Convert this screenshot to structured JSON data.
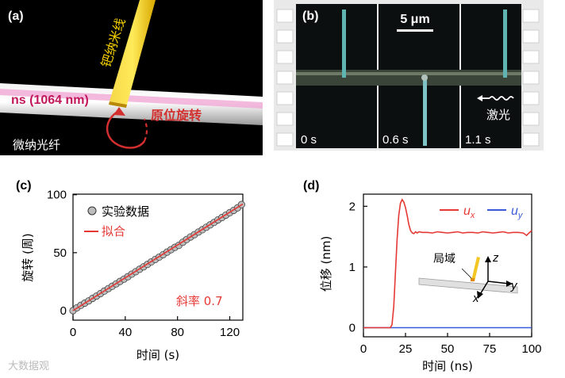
{
  "panel_a": {
    "label": "(a)",
    "wire_label": "钯纳米线",
    "fiber_label": "微纳光纤",
    "light_label": "ns (1064 nm)",
    "rotation_label": "原位旋转"
  },
  "panel_b": {
    "label": "(b)",
    "scale_bar": "5 μm",
    "frames": [
      {
        "time": "0 s"
      },
      {
        "time": "0.6 s"
      },
      {
        "time": "1.1 s"
      }
    ],
    "laser_label": "激光"
  },
  "chart_data": [
    {
      "panel": "(c)",
      "type": "scatter",
      "xlabel": "时间 (s)",
      "ylabel": "旋转 (周)",
      "xlim": [
        0,
        130
      ],
      "ylim": [
        0,
        100
      ],
      "xticks": [
        "0",
        "40",
        "80",
        "120"
      ],
      "yticks": [
        "0",
        "50",
        "100"
      ],
      "legend": [
        "实验数据",
        "拟合"
      ],
      "annotation": "斜率 0.7",
      "series": [
        {
          "name": "实验数据",
          "x": [
            0,
            3,
            6,
            9,
            12,
            15,
            18,
            21,
            24,
            27,
            30,
            33,
            36,
            39,
            42,
            45,
            48,
            51,
            54,
            57,
            60,
            63,
            66,
            69,
            72,
            75,
            78,
            81,
            84,
            87,
            90,
            93,
            96,
            99,
            102,
            105,
            108,
            111,
            114,
            117,
            120,
            123,
            126,
            129
          ],
          "values": [
            0,
            2.5,
            4.6,
            6.5,
            8.4,
            10.6,
            12.6,
            14.7,
            16.9,
            19.0,
            21.0,
            23.1,
            25.2,
            27.2,
            29.3,
            31.5,
            33.6,
            35.7,
            37.8,
            39.9,
            42.1,
            44.2,
            46.2,
            48.3,
            50.5,
            52.6,
            54.6,
            56.3,
            59.0,
            61.4,
            63.6,
            65.6,
            67.8,
            69.8,
            71.9,
            74.0,
            76.1,
            78.3,
            80.3,
            82.4,
            84.5,
            86.5,
            88.7,
            91.5
          ]
        },
        {
          "name": "拟合",
          "x": [
            0,
            130
          ],
          "values": [
            0,
            92
          ]
        }
      ]
    },
    {
      "panel": "(d)",
      "type": "line",
      "xlabel": "时间 (ns)",
      "ylabel": "位移 (nm)",
      "xlim": [
        0,
        100
      ],
      "ylim": [
        -0.15,
        2.2
      ],
      "xticks": [
        "0",
        "25",
        "50",
        "75",
        "100"
      ],
      "yticks": [
        "0",
        "1",
        "2"
      ],
      "inset_label": "局域",
      "series": [
        {
          "name": "u",
          "sub": "x",
          "color": "#e53935",
          "x": [
            0,
            16,
            17,
            18,
            19,
            20,
            21,
            22,
            23,
            24,
            25,
            26,
            27,
            28,
            29,
            30,
            31,
            32,
            33,
            35,
            38,
            41,
            44,
            47,
            50,
            53,
            56,
            59,
            62,
            65,
            68,
            71,
            74,
            77,
            80,
            83,
            86,
            89,
            92,
            95,
            97,
            98,
            100
          ],
          "values": [
            0,
            0,
            0.05,
            0.35,
            0.9,
            1.45,
            1.85,
            2.05,
            2.11,
            2.07,
            1.98,
            1.85,
            1.7,
            1.6,
            1.56,
            1.55,
            1.58,
            1.56,
            1.58,
            1.57,
            1.57,
            1.56,
            1.58,
            1.57,
            1.56,
            1.57,
            1.58,
            1.56,
            1.57,
            1.57,
            1.56,
            1.58,
            1.57,
            1.56,
            1.57,
            1.58,
            1.56,
            1.57,
            1.57,
            1.56,
            1.52,
            1.55,
            1.6
          ]
        },
        {
          "name": "u",
          "sub": "y",
          "color": "#3a5ad9",
          "x": [
            0,
            100
          ],
          "values": [
            0,
            0
          ]
        }
      ]
    }
  ],
  "axis_labels": {
    "x": "x",
    "y": "y",
    "z": "z"
  },
  "watermark": "大数据观"
}
